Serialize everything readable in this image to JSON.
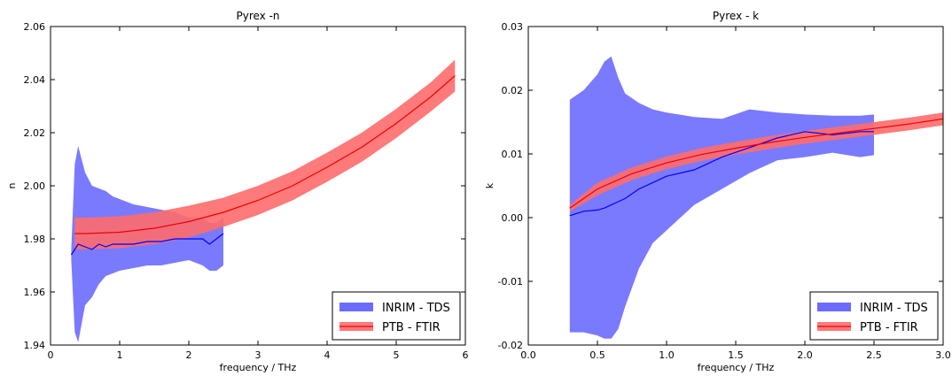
{
  "chart_data": [
    {
      "type": "line",
      "title": "Pyrex -n",
      "xlabel": "frequency / THz",
      "ylabel": "n",
      "xlim": [
        0,
        6
      ],
      "ylim": [
        1.94,
        2.06
      ],
      "x_ticks": [
        "0",
        "1",
        "2",
        "3",
        "4",
        "5",
        "6"
      ],
      "y_ticks": [
        "1.94",
        "1.96",
        "1.98",
        "2.00",
        "2.02",
        "2.04",
        "2.06"
      ],
      "legend": {
        "position": "lower right",
        "entries": [
          "INRIM - TDS",
          "PTB - FTIR"
        ]
      },
      "grid": false,
      "series": [
        {
          "name": "INRIM - TDS",
          "color": "#0000ff",
          "band_color": "#6b6bff",
          "x": [
            0.3,
            0.35,
            0.4,
            0.5,
            0.6,
            0.7,
            0.8,
            0.9,
            1.0,
            1.2,
            1.4,
            1.6,
            1.8,
            2.0,
            2.2,
            2.3,
            2.4,
            2.5
          ],
          "center": [
            1.974,
            1.976,
            1.978,
            1.977,
            1.976,
            1.978,
            1.977,
            1.978,
            1.978,
            1.978,
            1.979,
            1.979,
            1.98,
            1.98,
            1.98,
            1.978,
            1.98,
            1.982
          ],
          "upper": [
            1.976,
            2.008,
            2.015,
            2.005,
            2.0,
            1.999,
            1.998,
            1.996,
            1.995,
            1.993,
            1.992,
            1.991,
            1.99,
            1.988,
            1.988,
            1.986,
            1.986,
            1.988
          ],
          "lower": [
            1.972,
            1.945,
            1.941,
            1.955,
            1.958,
            1.963,
            1.966,
            1.967,
            1.968,
            1.969,
            1.97,
            1.97,
            1.971,
            1.972,
            1.97,
            1.968,
            1.968,
            1.97
          ]
        },
        {
          "name": "PTB - FTIR",
          "color": "#ee0000",
          "band_color": "#ff6b6b",
          "x": [
            0.35,
            0.5,
            1.0,
            1.5,
            2.0,
            2.5,
            3.0,
            3.5,
            4.0,
            4.5,
            5.0,
            5.5,
            5.85
          ],
          "center": [
            1.982,
            1.982,
            1.9825,
            1.984,
            1.9865,
            1.99,
            1.9945,
            2.0,
            2.007,
            2.0145,
            2.0235,
            2.0335,
            2.0415
          ],
          "upper": [
            1.988,
            1.988,
            1.9885,
            1.99,
            1.9925,
            1.9955,
            2.0,
            2.0055,
            2.0125,
            2.02,
            2.029,
            2.039,
            2.0475
          ],
          "lower": [
            1.976,
            1.976,
            1.9765,
            1.978,
            1.9805,
            1.9845,
            1.989,
            1.9945,
            2.0015,
            2.009,
            2.018,
            2.028,
            2.0355
          ]
        }
      ]
    },
    {
      "type": "line",
      "title": "Pyrex - k",
      "xlabel": "frequency / THz",
      "ylabel": "k",
      "xlim": [
        0.0,
        3.0
      ],
      "ylim": [
        -0.02,
        0.03
      ],
      "x_ticks": [
        "0.0",
        "0.5",
        "1.0",
        "1.5",
        "2.0",
        "2.5",
        "3.0"
      ],
      "y_ticks": [
        "-0.02",
        "-0.01",
        "0.00",
        "0.01",
        "0.02",
        "0.03"
      ],
      "legend": {
        "position": "lower right",
        "entries": [
          "INRIM - TDS",
          "PTB - FTIR"
        ]
      },
      "grid": false,
      "series": [
        {
          "name": "INRIM - TDS",
          "color": "#0000ff",
          "band_color": "#6b6bff",
          "x": [
            0.3,
            0.4,
            0.5,
            0.55,
            0.6,
            0.65,
            0.7,
            0.8,
            0.9,
            1.0,
            1.2,
            1.4,
            1.6,
            1.8,
            2.0,
            2.2,
            2.4,
            2.5
          ],
          "center": [
            0.0003,
            0.001,
            0.0012,
            0.0015,
            0.002,
            0.0025,
            0.003,
            0.0045,
            0.0055,
            0.0065,
            0.0075,
            0.0095,
            0.011,
            0.0125,
            0.0135,
            0.013,
            0.0135,
            0.0135
          ],
          "upper": [
            0.0185,
            0.02,
            0.0225,
            0.0245,
            0.0253,
            0.022,
            0.0195,
            0.018,
            0.017,
            0.0165,
            0.0158,
            0.0155,
            0.017,
            0.0165,
            0.0162,
            0.016,
            0.016,
            0.0162
          ],
          "lower": [
            -0.018,
            -0.018,
            -0.0185,
            -0.019,
            -0.019,
            -0.0175,
            -0.014,
            -0.008,
            -0.004,
            -0.002,
            0.002,
            0.0045,
            0.007,
            0.009,
            0.0095,
            0.0102,
            0.0095,
            0.0098
          ]
        },
        {
          "name": "PTB - FTIR",
          "color": "#ee0000",
          "band_color": "#ff6b6b",
          "x": [
            0.3,
            0.5,
            0.75,
            1.0,
            1.25,
            1.5,
            1.75,
            2.0,
            2.25,
            2.5,
            2.75,
            3.0
          ],
          "center": [
            0.0015,
            0.0045,
            0.0069,
            0.0086,
            0.0099,
            0.0109,
            0.0118,
            0.0126,
            0.0133,
            0.014,
            0.0147,
            0.0155
          ],
          "upper": [
            0.002,
            0.0055,
            0.0079,
            0.0096,
            0.0109,
            0.0119,
            0.0128,
            0.0136,
            0.0143,
            0.015,
            0.0157,
            0.0165
          ],
          "lower": [
            0.001,
            0.0035,
            0.0059,
            0.0076,
            0.0089,
            0.0099,
            0.0108,
            0.0116,
            0.0123,
            0.013,
            0.0137,
            0.0145
          ]
        }
      ]
    }
  ]
}
